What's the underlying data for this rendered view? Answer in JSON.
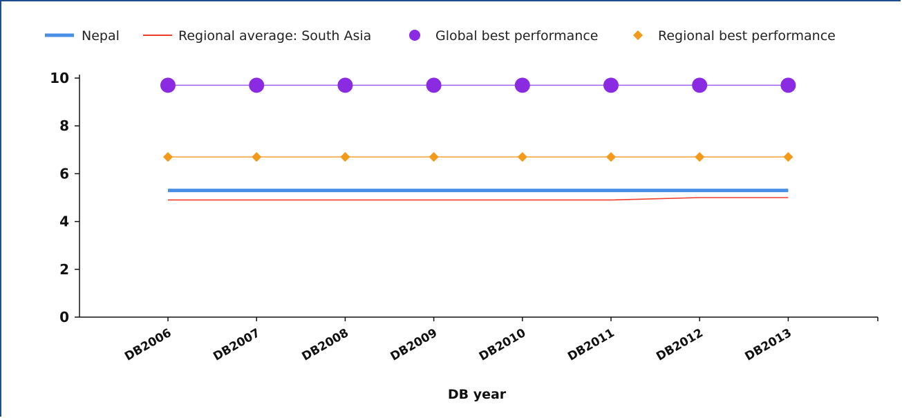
{
  "chart_data": {
    "type": "line",
    "xlabel": "DB year",
    "ylabel": "",
    "ylim": [
      0,
      10
    ],
    "yticks": [
      0,
      2,
      4,
      6,
      8,
      10
    ],
    "categories": [
      "DB2006",
      "DB2007",
      "DB2008",
      "DB2009",
      "DB2010",
      "DB2011",
      "DB2012",
      "DB2013"
    ],
    "legend_position": "top",
    "grid": false,
    "series": [
      {
        "name": "Nepal",
        "marker": "none",
        "color": "#4a8ee6",
        "values": [
          5.3,
          5.3,
          5.3,
          5.3,
          5.3,
          5.3,
          5.3,
          5.3
        ]
      },
      {
        "name": "Regional average: South Asia",
        "marker": "none",
        "color": "#f03a2a",
        "values": [
          4.9,
          4.9,
          4.9,
          4.9,
          4.9,
          4.9,
          5.0,
          5.0
        ]
      },
      {
        "name": "Global best performance",
        "marker": "circle",
        "color": "#8a2be2",
        "line_color": "#9b5cf0",
        "values": [
          9.7,
          9.7,
          9.7,
          9.7,
          9.7,
          9.7,
          9.7,
          9.7
        ]
      },
      {
        "name": "Regional best performance",
        "marker": "diamond",
        "color": "#f49a1a",
        "line_color": "#f6a640",
        "values": [
          6.7,
          6.7,
          6.7,
          6.7,
          6.7,
          6.7,
          6.7,
          6.7
        ]
      }
    ]
  }
}
